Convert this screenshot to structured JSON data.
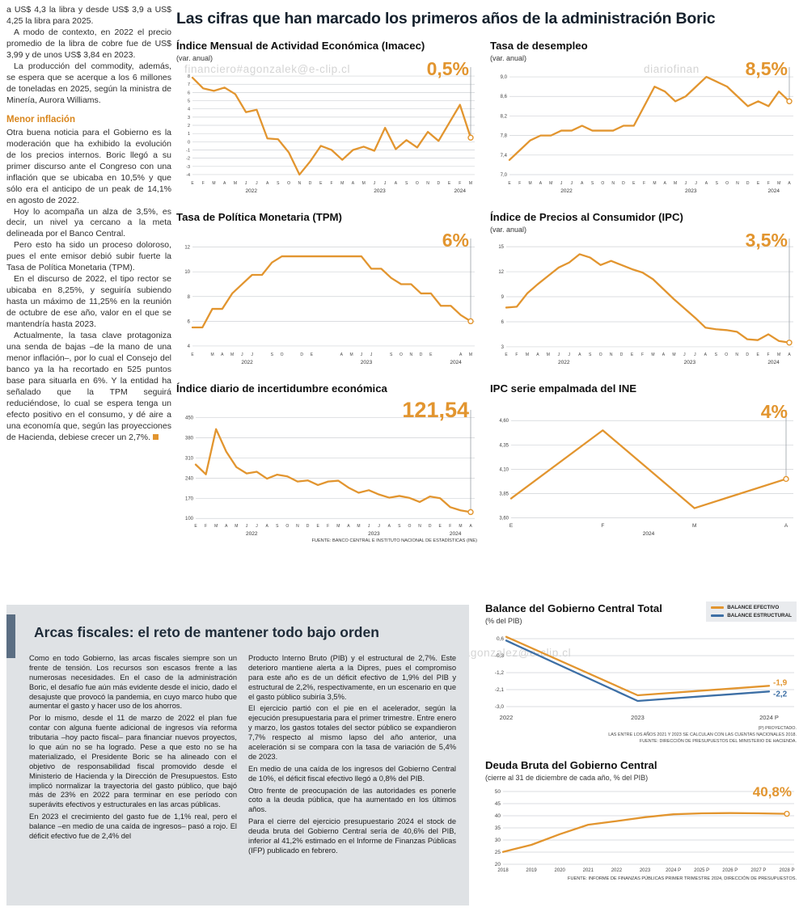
{
  "watermarks": {
    "top": "financiero#agonzalek@e-clip.cl",
    "top_right": "diariofinan",
    "bottom": "ero.#agonzalez@e-clip.cl"
  },
  "main": {
    "title": "Las cifras que han marcado los primeros años de la administración Boric"
  },
  "left_column": {
    "paragraphs": [
      "a US$ 4,3 la libra y desde US$ 3,9 a US$ 4,25 la libra para 2025.",
      "A modo de contexto, en 2022 el precio promedio de la libra de cobre fue de US$ 3,99 y de unos US$ 3,84 en 2023.",
      "La producción del commodity, además, se espera que se acerque a los 6 millones de toneladas en 2025, según la ministra de Minería, Aurora Williams."
    ],
    "subhead": "Menor inflación",
    "paragraphs2": [
      "Otra buena noticia para el Gobierno es la moderación que ha exhibido la evolución de los precios internos. Boric llegó a su primer discurso ante el Congreso con una inflación que se ubicaba en 10,5% y que sólo era el anticipo de un peak de 14,1% en agosto de 2022.",
      "Hoy lo acompaña un alza de 3,5%, es decir, un nivel ya cercano a la meta delineada por el Banco Central.",
      "Pero esto ha sido un proceso doloroso, pues el ente emisor debió subir fuerte la Tasa de Política Monetaria (TPM).",
      "En el discurso de 2022, el tipo rector se ubicaba en 8,25%, y seguiría subiendo hasta un máximo de 11,25% en la reunión de octubre de ese año, valor en el que se mantendría hasta 2023.",
      "Actualmente, la tasa clave protagoniza una senda de bajas –de la mano de una menor inflación–, por lo cual el Consejo del banco ya la ha recortado en 525 puntos base para situarla en 6%. Y la entidad ha señalado que la TPM seguirá reduciéndose, lo cual se espera tenga un efecto positivo en el consumo, y dé aire a una economía que, según las proyecciones de Hacienda, debiese crecer un 2,7%."
    ]
  },
  "fiscal": {
    "headline": "Arcas fiscales: el reto de mantener todo bajo orden",
    "col1": [
      "Como en todo Gobierno, las arcas fiscales siempre son un frente de tensión. Los recursos son escasos frente a las numerosas necesidades. En el caso de la administración Boric, el desafío fue aún más evidente desde el inicio, dado el desajuste que provocó la pandemia, en cuyo marco hubo que aumentar el gasto y hacer uso de los ahorros.",
      "Por lo mismo, desde el 11 de marzo de 2022 el plan fue contar con alguna fuente adicional de ingresos vía reforma tributaria –hoy pacto fiscal– para financiar nuevos proyectos, lo que aún no se ha logrado. Pese a que esto no se ha materializado, el Presidente Boric se ha alineado con el objetivo de responsabilidad fiscal promovido desde el Ministerio de Hacienda y la Dirección de Presupuestos. Esto implicó normalizar la trayectoria del gasto público, que bajó más de 23% en 2022 para terminar en ese período con superávits efectivos y estructurales en las arcas públicas.",
      "En 2023 el crecimiento del gasto fue de 1,1% real, pero el balance –en medio de una caída de ingresos– pasó a rojo. El déficit efectivo fue de 2,4% del"
    ],
    "col2": [
      "Producto Interno Bruto (PIB) y el estructural de 2,7%. Este deterioro mantiene alerta a la Dipres, pues el compromiso para este año es de un déficit efectivo de 1,9% del PIB y estructural de 2,2%, respectivamente, en un escenario en que el gasto público subiría 3,5%.",
      "El ejercicio partió con el pie en el acelerador, según la ejecución presupuestaria para el primer trimestre. Entre enero y marzo, los gastos totales del sector público se expandieron 7,7% respecto al mismo lapso del año anterior, una aceleración si se compara con la tasa de variación de 5,4% de 2023.",
      "En medio de una caída de los ingresos del Gobierno Central de 10%, el déficit fiscal efectivo llegó a 0,8% del PIB.",
      "Otro frente de preocupación de las autoridades es ponerle coto a la deuda pública, que ha aumentado en los últimos años.",
      "Para el cierre del ejercicio presupuestario 2024 el stock de deuda bruta del Gobierno Central sería de 40,6% del PIB, inferior al 41,2% estimado en el Informe de Finanzas Públicas (IFP) publicado en febrero."
    ]
  },
  "chart_data": [
    {
      "id": "imacec",
      "type": "line",
      "title": "Índice Mensual de Actividad Económica (Imacec)",
      "subtitle": "(var. anual)",
      "value_label": "0,5%",
      "ymin": -4.3,
      "ymax": 8.5,
      "ytick_values": [
        8,
        7,
        6,
        5,
        4,
        3,
        2,
        1,
        0,
        -1,
        -2,
        -3,
        -4
      ],
      "ytick_labels": [
        "8",
        "7",
        "6",
        "5",
        "4",
        "3",
        "2",
        "1",
        "0",
        "-1",
        "-2",
        "-3",
        "-4"
      ],
      "x_labels": [
        "E",
        "F",
        "M",
        "A",
        "M",
        "J",
        "J",
        "A",
        "S",
        "O",
        "N",
        "D",
        "E",
        "F",
        "M",
        "A",
        "M",
        "J",
        "J",
        "A",
        "S",
        "O",
        "N",
        "D",
        "E",
        "F",
        "M"
      ],
      "years": [
        {
          "label": "2022",
          "at": 5.5
        },
        {
          "label": "2023",
          "at": 17.5
        },
        {
          "label": "2024",
          "at": 25
        }
      ],
      "series": [
        {
          "name": "Imacec",
          "color": "#e2952f",
          "values": [
            7.8,
            6.5,
            6.2,
            6.6,
            5.8,
            3.6,
            3.9,
            0.4,
            0.3,
            -1.3,
            -4.0,
            -2.4,
            -0.5,
            -1.0,
            -2.2,
            -1.0,
            -0.6,
            -1.1,
            1.7,
            -0.9,
            0.2,
            -0.7,
            1.2,
            0.1,
            2.3,
            4.5,
            0.5
          ]
        }
      ],
      "end_line": true,
      "end_circle": true,
      "margins": {
        "l": 20,
        "r": 8,
        "t": 8,
        "b": 22
      },
      "yfs": 5.5,
      "xfs": 5
    },
    {
      "id": "desempleo",
      "type": "line",
      "title": "Tasa de desempleo",
      "subtitle": "(var. anual)",
      "value_label": "8,5%",
      "ymin": 6.95,
      "ymax": 9.1,
      "ytick_values": [
        9.0,
        8.6,
        8.2,
        7.8,
        7.4,
        7.0
      ],
      "ytick_labels": [
        "9,0",
        "8,6",
        "8,2",
        "7,8",
        "7,4",
        "7,0"
      ],
      "x_labels": [
        "E",
        "F",
        "M",
        "A",
        "M",
        "J",
        "J",
        "A",
        "S",
        "O",
        "N",
        "D",
        "E",
        "F",
        "M",
        "A",
        "M",
        "J",
        "J",
        "A",
        "S",
        "O",
        "N",
        "D",
        "E",
        "F",
        "M",
        "A"
      ],
      "years": [
        {
          "label": "2022",
          "at": 5.5
        },
        {
          "label": "2023",
          "at": 17.5
        },
        {
          "label": "2024",
          "at": 25.5
        }
      ],
      "series": [
        {
          "name": "Tasa de desempleo",
          "color": "#e2952f",
          "values": [
            7.3,
            7.5,
            7.7,
            7.8,
            7.8,
            7.9,
            7.9,
            8.0,
            7.9,
            7.9,
            7.9,
            8.0,
            8.0,
            8.4,
            8.8,
            8.7,
            8.5,
            8.6,
            8.8,
            9.0,
            8.9,
            8.8,
            8.6,
            8.4,
            8.5,
            8.4,
            8.7,
            8.5
          ]
        }
      ],
      "end_line": true,
      "end_circle": true,
      "margins": {
        "l": 24,
        "r": 8,
        "t": 8,
        "b": 22
      },
      "yfs": 6,
      "xfs": 5
    },
    {
      "id": "tpm",
      "type": "line",
      "title": "Tasa de Política Monetaria (TPM)",
      "subtitle": "",
      "value_label": "6%",
      "ymin": 3.8,
      "ymax": 12.3,
      "ytick_values": [
        12,
        10,
        8,
        6,
        4
      ],
      "ytick_labels": [
        "12",
        "10",
        "8",
        "6",
        "4"
      ],
      "x_labels": [
        "E",
        "",
        "M",
        "A",
        "M",
        "J",
        "J",
        "",
        "S",
        "O",
        "",
        "D",
        "E",
        "",
        "",
        "A",
        "M",
        "J",
        "J",
        "",
        "S",
        "O",
        "N",
        "D",
        "E",
        "",
        "",
        "A",
        "M"
      ],
      "years": [
        {
          "label": "2022",
          "at": 5.5
        },
        {
          "label": "2023",
          "at": 17.5
        },
        {
          "label": "2024",
          "at": 26.5
        }
      ],
      "series": [
        {
          "name": "TPM",
          "color": "#e2952f",
          "values": [
            5.5,
            5.5,
            7.0,
            7.0,
            8.25,
            9.0,
            9.75,
            9.75,
            10.75,
            11.25,
            11.25,
            11.25,
            11.25,
            11.25,
            11.25,
            11.25,
            11.25,
            11.25,
            10.25,
            10.25,
            9.5,
            9.0,
            9.0,
            8.25,
            8.25,
            7.25,
            7.25,
            6.5,
            6.0
          ]
        }
      ],
      "end_line": true,
      "end_circle": true,
      "margins": {
        "l": 20,
        "r": 8,
        "t": 8,
        "b": 22
      },
      "yfs": 6,
      "xfs": 5
    },
    {
      "id": "ipc",
      "type": "line",
      "title": "Índice de Precios al Consumidor (IPC)",
      "subtitle": "(var. anual)",
      "value_label": "3,5%",
      "ymin": 2.8,
      "ymax": 15.4,
      "ytick_values": [
        15,
        12,
        9,
        6,
        3
      ],
      "ytick_labels": [
        "15",
        "12",
        "9",
        "6",
        "3"
      ],
      "x_labels": [
        "E",
        "F",
        "M",
        "A",
        "M",
        "J",
        "J",
        "A",
        "S",
        "O",
        "N",
        "D",
        "E",
        "F",
        "M",
        "A",
        "M",
        "J",
        "J",
        "A",
        "S",
        "O",
        "N",
        "D",
        "E",
        "F",
        "M",
        "A"
      ],
      "years": [
        {
          "label": "2022",
          "at": 5.5
        },
        {
          "label": "2023",
          "at": 17.5
        },
        {
          "label": "2024",
          "at": 25.5
        }
      ],
      "series": [
        {
          "name": "IPC",
          "color": "#e2952f",
          "values": [
            7.7,
            7.8,
            9.4,
            10.5,
            11.5,
            12.5,
            13.1,
            14.1,
            13.7,
            12.8,
            13.3,
            12.8,
            12.3,
            11.9,
            11.1,
            9.9,
            8.7,
            7.6,
            6.5,
            5.3,
            5.1,
            5.0,
            4.8,
            3.9,
            3.8,
            4.5,
            3.7,
            3.5
          ]
        }
      ],
      "end_line": true,
      "end_circle": true,
      "margins": {
        "l": 20,
        "r": 8,
        "t": 8,
        "b": 22
      },
      "yfs": 6,
      "xfs": 5
    },
    {
      "id": "incertidumbre",
      "type": "line",
      "title": "Índice diario de incertidumbre económica",
      "subtitle": "",
      "value_label": "121,54",
      "ymin": 95,
      "ymax": 460,
      "ytick_values": [
        450,
        380,
        310,
        240,
        170,
        100
      ],
      "ytick_labels": [
        "450",
        "380",
        "310",
        "240",
        "170",
        "100"
      ],
      "x_labels": [
        "E",
        "F",
        "M",
        "A",
        "M",
        "J",
        "J",
        "A",
        "S",
        "O",
        "N",
        "D",
        "E",
        "F",
        "M",
        "A",
        "M",
        "J",
        "J",
        "A",
        "S",
        "O",
        "N",
        "D",
        "E",
        "F",
        "M",
        "A"
      ],
      "years": [
        {
          "label": "2022",
          "at": 5.5
        },
        {
          "label": "2023",
          "at": 17.5
        },
        {
          "label": "2024",
          "at": 25.5
        }
      ],
      "series": [
        {
          "name": "Incertidumbre económica",
          "color": "#e2952f",
          "values": [
            287,
            253,
            410,
            332,
            278,
            256,
            262,
            238,
            252,
            246,
            228,
            232,
            216,
            228,
            231,
            207,
            189,
            198,
            183,
            172,
            178,
            171,
            157,
            176,
            170,
            139,
            128,
            122
          ]
        }
      ],
      "end_line": true,
      "end_circle": true,
      "source": "FUENTE: BANCO CENTRAL E INSTITUTO NACIONAL DE ESTADÍSTICAS (INE)",
      "margins": {
        "l": 24,
        "r": 8,
        "t": 8,
        "b": 22
      },
      "yfs": 6,
      "xfs": 5
    },
    {
      "id": "ipc-empalmada",
      "type": "line",
      "title": "IPC serie empalmada del INE",
      "subtitle": "",
      "value_label": "4%",
      "ymin": 3.58,
      "ymax": 4.66,
      "ytick_values": [
        4.6,
        4.35,
        4.1,
        3.85,
        3.6
      ],
      "ytick_labels": [
        "4,60",
        "4,35",
        "4,10",
        "3,85",
        "3,60"
      ],
      "x_labels": [
        "E",
        "F",
        "M",
        "A"
      ],
      "years": [
        {
          "label": "2024",
          "at": 1.5
        }
      ],
      "series": [
        {
          "name": "IPC empalmada",
          "color": "#e2952f",
          "values": [
            3.8,
            4.5,
            3.7,
            4.0
          ]
        }
      ],
      "end_line": true,
      "end_circle": true,
      "margins": {
        "l": 26,
        "r": 12,
        "t": 8,
        "b": 22
      },
      "yfs": 6,
      "xfs": 6.5
    },
    {
      "id": "balance",
      "type": "line",
      "title": "Balance del Gobierno Central Total",
      "subtitle": "(% del PIB)",
      "legend": [
        {
          "label": "BALANCE EFECTIVO",
          "color": "#e2952f"
        },
        {
          "label": "BALANCE ESTRUCTURAL",
          "color": "#3d6fa5"
        }
      ],
      "ymin": -3.3,
      "ymax": 0.9,
      "ytick_values": [
        0.6,
        -0.3,
        -1.2,
        -2.1,
        -3.0
      ],
      "ytick_labels": [
        "0,6",
        "-0,3",
        "-1,2",
        "-2,1",
        "-3,0"
      ],
      "x_labels": [
        "2022",
        "2023",
        "2024 P"
      ],
      "series": [
        {
          "name": "Balance efectivo",
          "color": "#e2952f",
          "values": [
            0.7,
            -2.4,
            -1.9
          ]
        },
        {
          "name": "Balance estructural",
          "color": "#3d6fa5",
          "values": [
            0.5,
            -2.7,
            -2.2
          ]
        }
      ],
      "end_labels": [
        {
          "text": "-1,9",
          "color": "#e2952f",
          "series": 0,
          "dy": -1
        },
        {
          "text": "-2,2",
          "color": "#3d6fa5",
          "series": 1,
          "dy": 6
        }
      ],
      "footnotes": [
        "(P) PROYECTADO.",
        "LAS ENTRE LOS AÑOS 2021 Y 2023 SE CALCULAN CON LAS CUENTAS NACIONALES 2018.",
        "FUENTE: DIRECCIÓN DE PRESUPUESTOS DEL MINISTERIO DE HACIENDA."
      ],
      "margins": {
        "l": 26,
        "r": 34,
        "t": 6,
        "b": 14
      },
      "yfs": 6.5,
      "xfs": 7.5
    },
    {
      "id": "deuda",
      "type": "line",
      "title": "Deuda Bruta del Gobierno Central",
      "subtitle": "(cierre al 31 de diciembre de cada año, % del PIB)",
      "value_label": "40,8%",
      "ymin": 20,
      "ymax": 50,
      "ytick_values": [
        50,
        45,
        40,
        35,
        30,
        25,
        20
      ],
      "ytick_labels": [
        "50",
        "45",
        "40",
        "35",
        "30",
        "25",
        "20"
      ],
      "x_labels": [
        "2018",
        "2019",
        "2020",
        "2021",
        "2022",
        "2023",
        "2024 P",
        "2025 P",
        "2026 P",
        "2027 P",
        "2028 P"
      ],
      "series": [
        {
          "name": "Deuda bruta",
          "color": "#e2952f",
          "values": [
            25.1,
            28.0,
            32.4,
            36.3,
            37.8,
            39.4,
            40.6,
            41.0,
            41.1,
            41.0,
            40.8
          ]
        }
      ],
      "end_circle": true,
      "source": "FUENTE: INFORME DE FINANZAS PÚBLICAS PRIMER TRIMESTRE 2024, DIRECCIÓN DE PRESUPUESTOS.",
      "margins": {
        "l": 22,
        "r": 12,
        "t": 8,
        "b": 14
      },
      "yfs": 6.5,
      "xfs": 6
    }
  ]
}
